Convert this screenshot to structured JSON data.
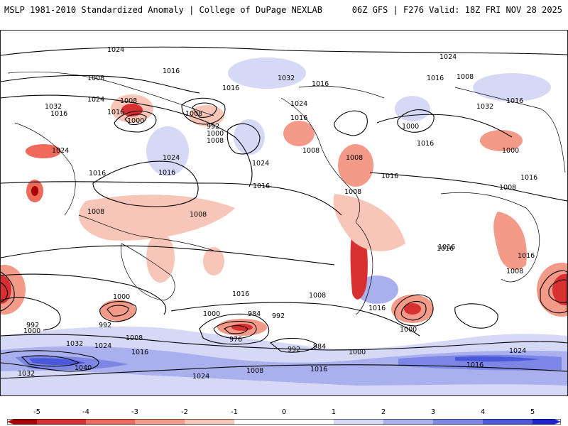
{
  "header": {
    "title_left": "MSLP 1981-2010 Standardized Anomaly | College of DuPage NEXLAB",
    "title_right": "06Z GFS | F276 Valid: 18Z FRI NOV 28 2025"
  },
  "colors": {
    "neg5": "#a80000",
    "neg4": "#d83030",
    "neg3": "#ee6a5a",
    "neg2": "#f49a88",
    "neg1": "#f8c6b8",
    "zero": "#ffffff",
    "pos1": "#d6d9f6",
    "pos2": "#aab0ee",
    "pos3": "#7c86e4",
    "pos4": "#4b58da",
    "pos5": "#1d24d0"
  },
  "colorbar": {
    "labels": [
      "-5",
      "-4",
      "-3",
      "-2",
      "-1",
      "0",
      "1",
      "2",
      "3",
      "4",
      "5"
    ]
  },
  "contour_labels": [
    "1024",
    "1016",
    "1008",
    "1016",
    "1024",
    "1032",
    "1008",
    "1016",
    "1008",
    "1000",
    "992",
    "1000",
    "1008",
    "1024",
    "1016",
    "1024",
    "1016",
    "1032",
    "1024",
    "1016",
    "1008",
    "1016",
    "1016",
    "1024",
    "1016",
    "1008",
    "1000",
    "1016",
    "1024",
    "1016",
    "1032",
    "1008",
    "1000",
    "1008",
    "1016",
    "1008",
    "1016",
    "1016",
    "1016",
    "1008",
    "1008",
    "1000",
    "992",
    "984",
    "976",
    "992",
    "1000",
    "1008",
    "1016",
    "1032",
    "1024",
    "1040",
    "1032",
    "992",
    "1000",
    "1016",
    "984",
    "992",
    "1000",
    "1016",
    "1008",
    "1024",
    "1016",
    "1008",
    "1016",
    "1024",
    "1016",
    "1016",
    "1008",
    "1000"
  ]
}
